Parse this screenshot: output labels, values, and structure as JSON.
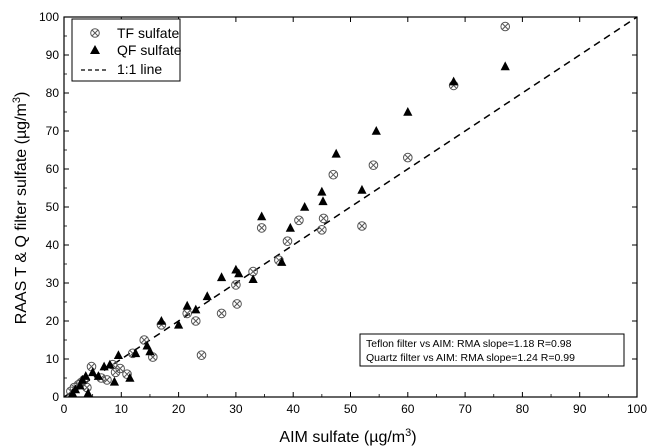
{
  "chart_data": {
    "type": "scatter",
    "xlabel": "AIM sulfate (µg/m",
    "xlabel_sup": "3",
    "xlabel_end": ")",
    "ylabel": "RAAS T & Q filter sulfate (µg/m",
    "ylabel_sup": "3",
    "ylabel_end": ")",
    "xlim": [
      0,
      100
    ],
    "ylim": [
      0,
      100
    ],
    "xticks": [
      0,
      10,
      20,
      30,
      40,
      50,
      60,
      70,
      80,
      90,
      100
    ],
    "yticks": [
      0,
      10,
      20,
      30,
      40,
      50,
      60,
      70,
      80,
      90,
      100
    ],
    "grid": false,
    "legend_position": "top-left",
    "legend": [
      {
        "label": "TF sulfate",
        "marker": "circle-x"
      },
      {
        "label": "QF sulfate",
        "marker": "triangle"
      },
      {
        "label": "1:1 line",
        "marker": "dashed-line"
      }
    ],
    "annotations": [
      "Teflon filter vs AIM: RMA slope=1.18 R=0.98",
      "Quartz filter vs AIM: RMA slope=1.24 R=0.99"
    ],
    "series": [
      {
        "name": "TF sulfate",
        "marker": "circle-x",
        "points": [
          [
            1.2,
            1.5
          ],
          [
            1.8,
            2.5
          ],
          [
            2.5,
            3.2
          ],
          [
            3.0,
            3.8
          ],
          [
            3.5,
            4.5
          ],
          [
            4.0,
            2.5
          ],
          [
            4.8,
            8.0
          ],
          [
            6.5,
            5.0
          ],
          [
            7.5,
            4.5
          ],
          [
            8.5,
            8.5
          ],
          [
            9.0,
            6.5
          ],
          [
            9.8,
            7.5
          ],
          [
            11.0,
            6.0
          ],
          [
            12.0,
            11.5
          ],
          [
            14.0,
            15.0
          ],
          [
            15.5,
            10.5
          ],
          [
            17.0,
            19.0
          ],
          [
            21.5,
            22.0
          ],
          [
            23.0,
            20.0
          ],
          [
            24.0,
            11.0
          ],
          [
            27.5,
            22.0
          ],
          [
            30.0,
            29.5
          ],
          [
            30.2,
            24.5
          ],
          [
            33.0,
            33.0
          ],
          [
            34.5,
            44.5
          ],
          [
            37.5,
            36.0
          ],
          [
            39.0,
            41.0
          ],
          [
            41.0,
            46.5
          ],
          [
            45.0,
            44.0
          ],
          [
            45.3,
            47.0
          ],
          [
            47.0,
            58.5
          ],
          [
            52.0,
            45.0
          ],
          [
            54.0,
            61.0
          ],
          [
            60.0,
            63.0
          ],
          [
            68.0,
            82.0
          ],
          [
            77.0,
            97.5
          ]
        ]
      },
      {
        "name": "QF sulfate",
        "marker": "triangle",
        "points": [
          [
            1.5,
            1.0
          ],
          [
            2.0,
            2.0
          ],
          [
            2.8,
            3.0
          ],
          [
            3.2,
            4.5
          ],
          [
            3.8,
            5.5
          ],
          [
            4.2,
            1.0
          ],
          [
            5.0,
            6.5
          ],
          [
            6.0,
            5.5
          ],
          [
            7.0,
            8.0
          ],
          [
            8.0,
            8.5
          ],
          [
            8.8,
            4.0
          ],
          [
            9.5,
            11.0
          ],
          [
            11.5,
            5.0
          ],
          [
            12.5,
            11.5
          ],
          [
            14.5,
            13.5
          ],
          [
            15.0,
            12.0
          ],
          [
            17.0,
            20.0
          ],
          [
            20.0,
            19.0
          ],
          [
            21.5,
            24.0
          ],
          [
            23.0,
            23.0
          ],
          [
            25.0,
            26.5
          ],
          [
            27.5,
            31.5
          ],
          [
            30.0,
            33.5
          ],
          [
            30.5,
            32.5
          ],
          [
            33.0,
            31.0
          ],
          [
            34.5,
            47.5
          ],
          [
            38.0,
            35.5
          ],
          [
            39.5,
            44.5
          ],
          [
            42.0,
            50.0
          ],
          [
            45.0,
            54.0
          ],
          [
            45.2,
            51.5
          ],
          [
            47.5,
            64.0
          ],
          [
            52.0,
            54.5
          ],
          [
            54.5,
            70.0
          ],
          [
            60.0,
            75.0
          ],
          [
            68.0,
            83.0
          ],
          [
            77.0,
            87.0
          ]
        ]
      },
      {
        "name": "1:1 line",
        "type": "line",
        "style": "dashed",
        "points": [
          [
            0,
            0
          ],
          [
            100,
            100
          ]
        ]
      }
    ]
  }
}
